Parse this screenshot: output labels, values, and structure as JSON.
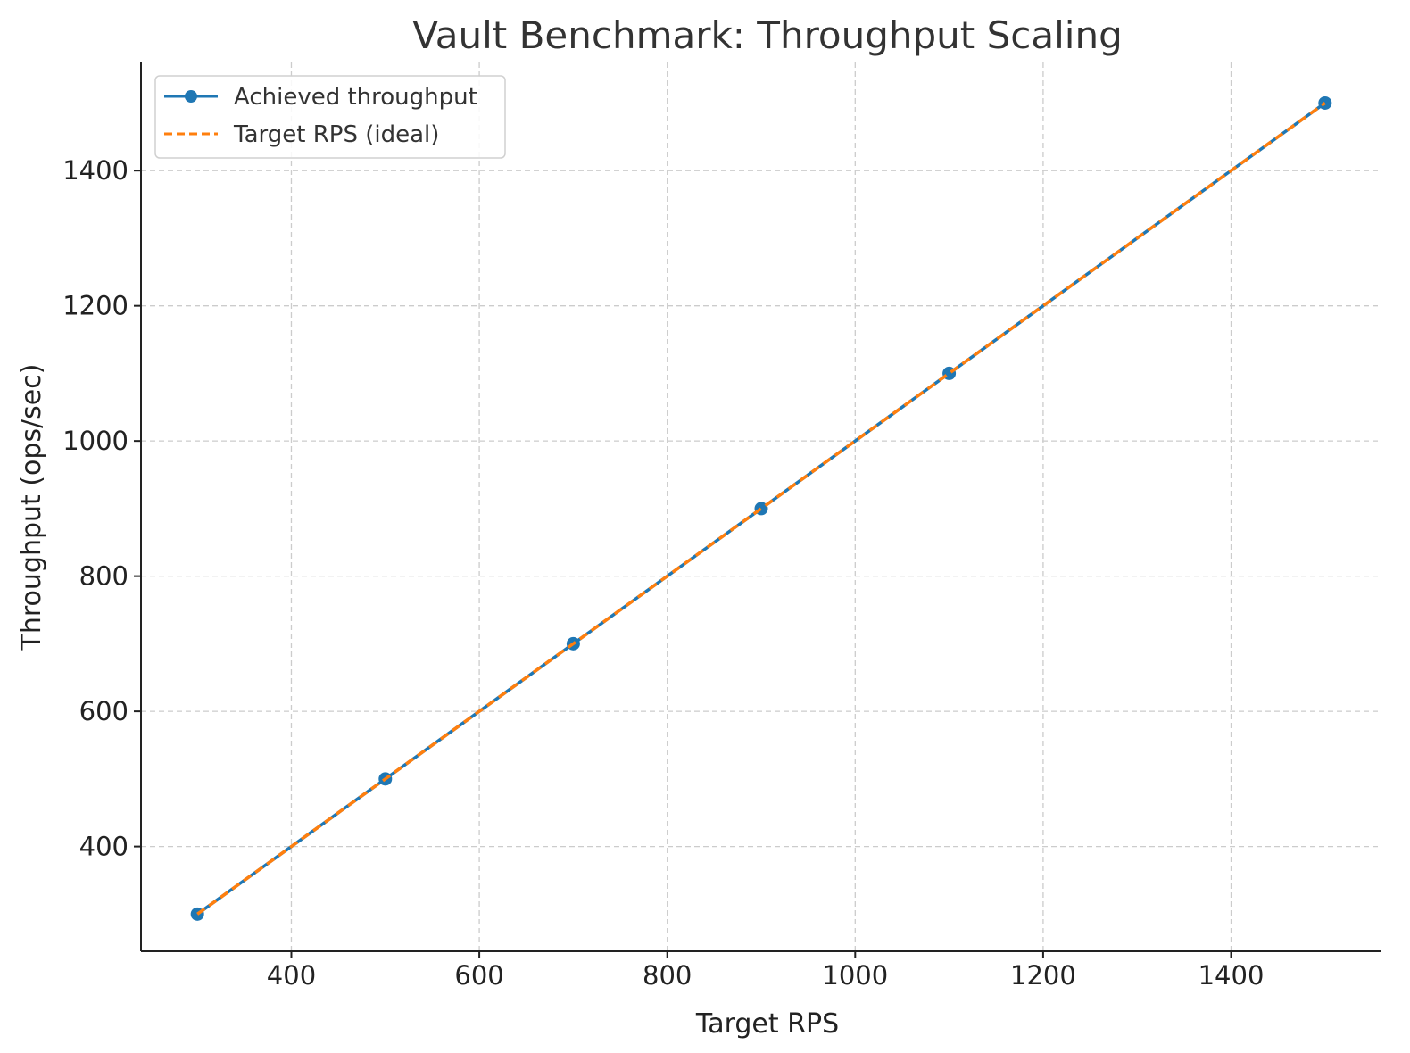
{
  "chart_data": {
    "type": "line",
    "title": "Vault Benchmark: Throughput Scaling",
    "xlabel": "Target RPS",
    "ylabel": "Throughput (ops/sec)",
    "xlim": [
      240,
      1560
    ],
    "ylim": [
      245,
      1560
    ],
    "xticks": [
      400,
      600,
      800,
      1000,
      1200,
      1400
    ],
    "yticks": [
      400,
      600,
      800,
      1000,
      1200,
      1400
    ],
    "grid": true,
    "legend_position": "top-left",
    "series": [
      {
        "name": "Achieved throughput",
        "x": [
          300,
          500,
          700,
          900,
          1100,
          1500
        ],
        "y": [
          300,
          500,
          700,
          900,
          1100,
          1500
        ],
        "color": "#1f77b4",
        "style": "solid",
        "markers": true
      },
      {
        "name": "Target RPS (ideal)",
        "x": [
          300,
          500,
          700,
          900,
          1100,
          1500
        ],
        "y": [
          300,
          500,
          700,
          900,
          1100,
          1500
        ],
        "color": "#ff7f0e",
        "style": "dashed",
        "markers": false
      }
    ]
  }
}
